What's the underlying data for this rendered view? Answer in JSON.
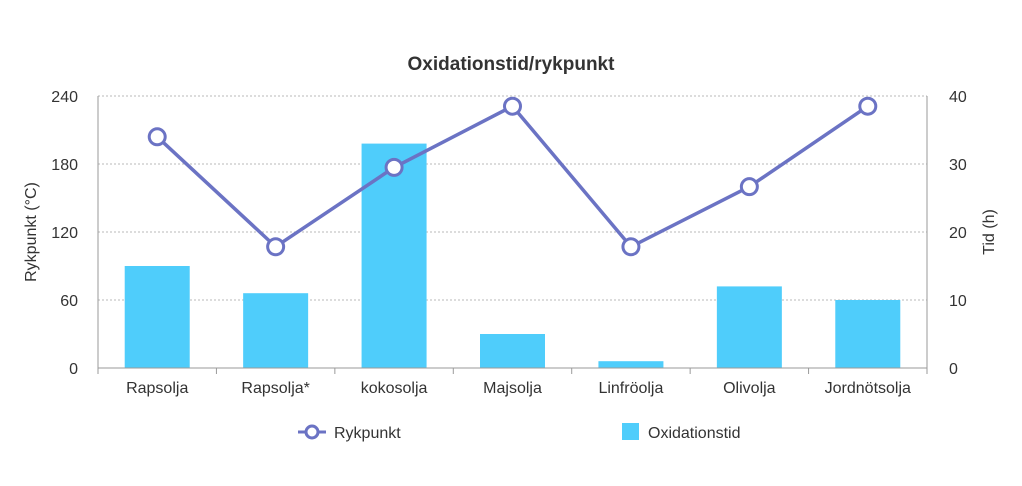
{
  "chart_data": {
    "type": "bar",
    "title": "Oxidationstid/rykpunkt",
    "categories": [
      "Rapsolja",
      "Rapsolja*",
      "kokosolja",
      "Majsolja",
      "Linfröolja",
      "Olivolja",
      "Jordnötsolja"
    ],
    "ylabel_left": "Rykpunkt (°C)",
    "ylabel_right": "Tid (h)",
    "ylim_left": [
      0,
      240
    ],
    "ylim_right": [
      0,
      40
    ],
    "yticks_left": [
      "0",
      "60",
      "120",
      "180",
      "240"
    ],
    "yticks_right": [
      "0",
      "10",
      "20",
      "30",
      "40"
    ],
    "grid": true,
    "legend_position": "bottom",
    "series": [
      {
        "name": "Rykpunkt",
        "type": "line",
        "axis": "left",
        "color": "#6B73C4",
        "values": [
          204,
          107,
          177,
          231,
          107,
          160,
          231
        ]
      },
      {
        "name": "Oxidationstid",
        "type": "bar",
        "axis": "right",
        "color": "#4FCDFB",
        "values": [
          15,
          11,
          33,
          5,
          1,
          12,
          10
        ]
      }
    ]
  }
}
